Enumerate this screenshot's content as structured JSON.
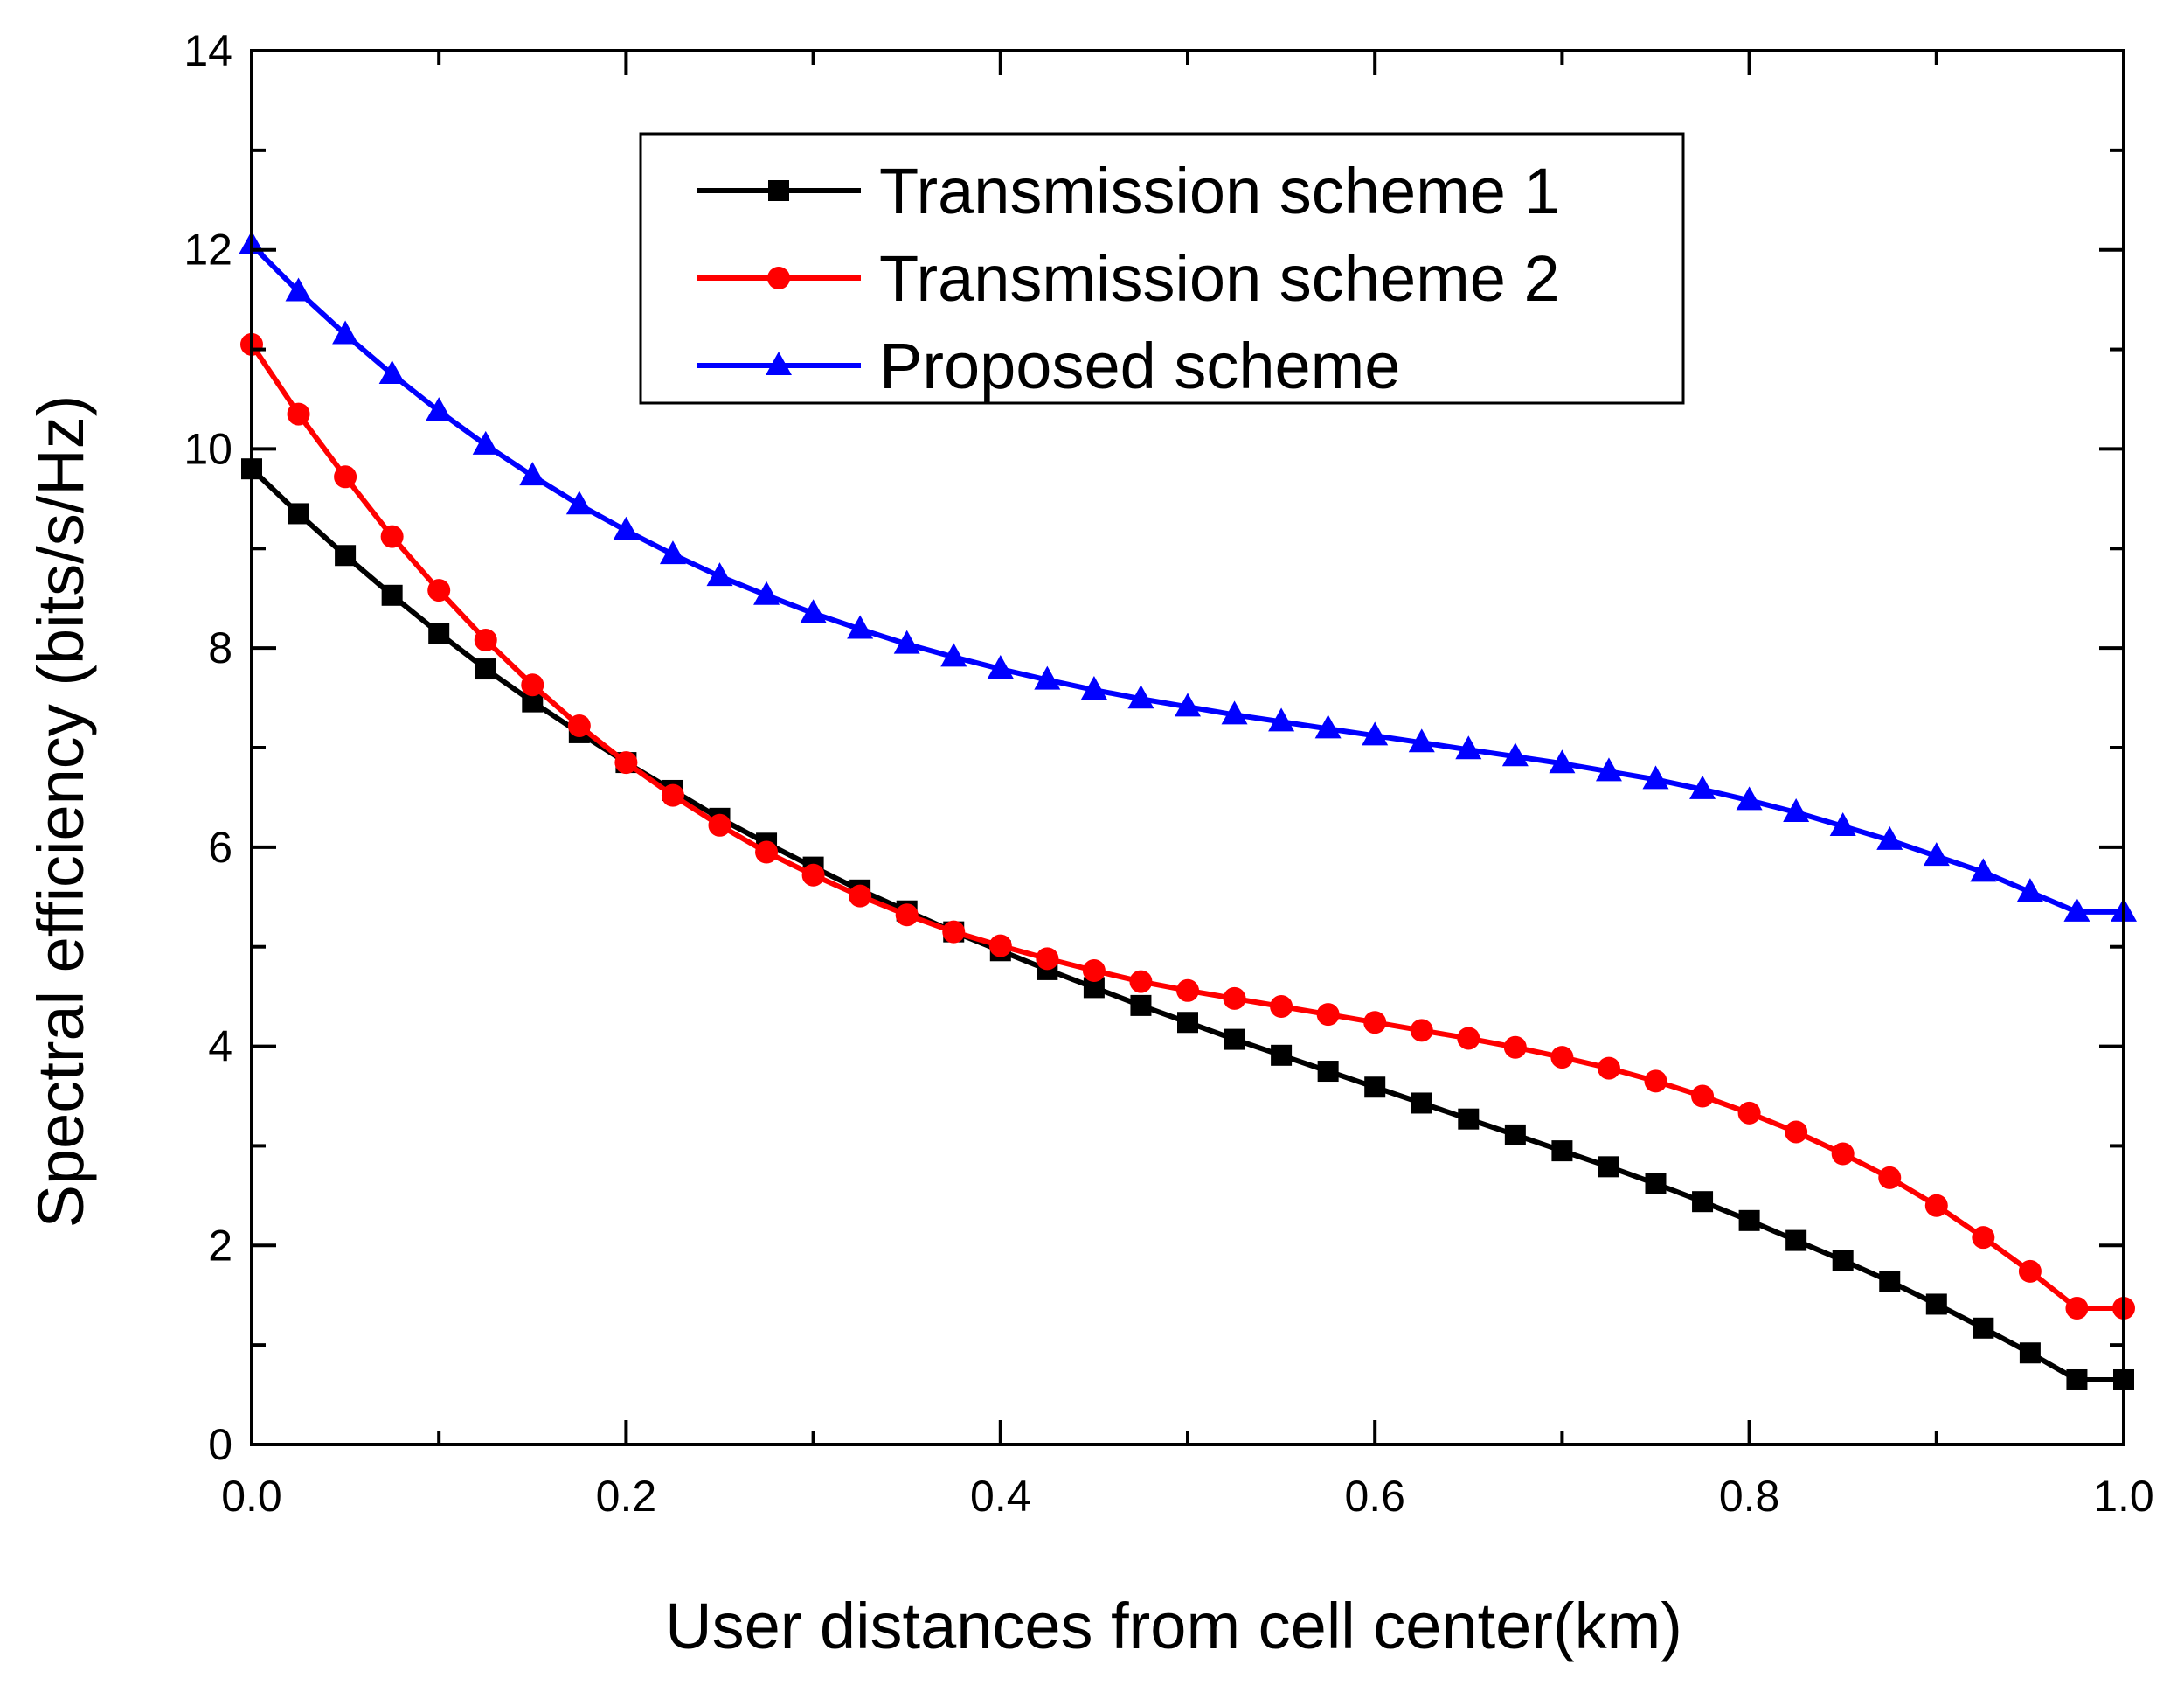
{
  "chart_data": {
    "type": "line",
    "xlabel": "User distances from cell center(km)",
    "ylabel": "Spectral efficiency (bits/s/Hz)",
    "xlim": [
      0,
      1
    ],
    "ylim": [
      0,
      14
    ],
    "xticks": [
      "0.0",
      "0.2",
      "0.4",
      "0.6",
      "0.8",
      "1.0"
    ],
    "yticks": [
      "0",
      "2",
      "4",
      "6",
      "8",
      "10",
      "12",
      "14"
    ],
    "grid": false,
    "legend_position": "top-center",
    "x": [
      0.0,
      0.025,
      0.05,
      0.075,
      0.1,
      0.125,
      0.15,
      0.175,
      0.2,
      0.225,
      0.25,
      0.275,
      0.3,
      0.325,
      0.35,
      0.375,
      0.4,
      0.425,
      0.45,
      0.475,
      0.5,
      0.525,
      0.55,
      0.575,
      0.6,
      0.625,
      0.65,
      0.675,
      0.7,
      0.725,
      0.75,
      0.775,
      0.8,
      0.825,
      0.85,
      0.875,
      0.9,
      0.925,
      0.95,
      0.975,
      1.0
    ],
    "series": [
      {
        "name": "Transmission scheme 1",
        "color": "#000000",
        "marker": "square",
        "values": [
          9.8,
          9.35,
          8.93,
          8.53,
          8.15,
          7.79,
          7.46,
          7.15,
          6.85,
          6.57,
          6.29,
          6.04,
          5.8,
          5.57,
          5.36,
          5.15,
          4.96,
          4.77,
          4.59,
          4.41,
          4.24,
          4.07,
          3.91,
          3.75,
          3.59,
          3.43,
          3.27,
          3.11,
          2.95,
          2.79,
          2.62,
          2.44,
          2.25,
          2.05,
          1.85,
          1.64,
          1.41,
          1.17,
          0.92,
          0.65,
          0.65
        ]
      },
      {
        "name": "Transmission scheme 2",
        "color": "#ff0000",
        "marker": "circle",
        "values": [
          11.05,
          10.35,
          9.72,
          9.12,
          8.58,
          8.08,
          7.63,
          7.22,
          6.85,
          6.52,
          6.22,
          5.95,
          5.72,
          5.51,
          5.32,
          5.15,
          5.01,
          4.88,
          4.76,
          4.65,
          4.56,
          4.48,
          4.4,
          4.32,
          4.24,
          4.16,
          4.08,
          3.99,
          3.89,
          3.78,
          3.65,
          3.5,
          3.33,
          3.14,
          2.92,
          2.68,
          2.4,
          2.08,
          1.74,
          1.37,
          1.37
        ]
      },
      {
        "name": "Proposed scheme",
        "color": "#0000ff",
        "marker": "triangle",
        "values": [
          12.05,
          11.58,
          11.15,
          10.75,
          10.38,
          10.04,
          9.73,
          9.44,
          9.18,
          8.94,
          8.72,
          8.53,
          8.35,
          8.19,
          8.04,
          7.91,
          7.79,
          7.68,
          7.58,
          7.49,
          7.41,
          7.33,
          7.26,
          7.19,
          7.12,
          7.05,
          6.98,
          6.91,
          6.84,
          6.76,
          6.68,
          6.58,
          6.47,
          6.35,
          6.21,
          6.07,
          5.91,
          5.75,
          5.55,
          5.35,
          5.35
        ]
      }
    ]
  }
}
